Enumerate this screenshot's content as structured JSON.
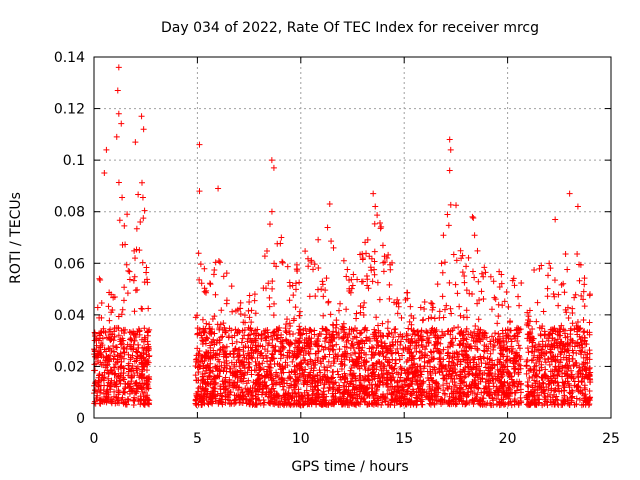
{
  "chart_data": {
    "type": "scatter",
    "title": "Day 034 of 2022, Rate Of TEC Index for receiver mrcg",
    "xlabel": "GPS time / hours",
    "ylabel": "ROTI / TECUs",
    "xlim": [
      0,
      25
    ],
    "ylim": [
      0,
      0.14
    ],
    "x_ticks": [
      "0",
      "5",
      "10",
      "15",
      "20",
      "25"
    ],
    "y_ticks": [
      "0",
      "0.02",
      "0.04",
      "0.06",
      "0.08",
      "0.1",
      "0.12",
      "0.14"
    ],
    "grid": true,
    "marker": "+",
    "marker_color": "#ff0000",
    "segments": [
      {
        "x": [
          0.0,
          2.7
        ],
        "base": 0.005,
        "typical_max": 0.035,
        "envelope": [
          [
            0.0,
            0.03
          ],
          [
            0.3,
            0.06
          ],
          [
            0.6,
            0.045
          ],
          [
            1.0,
            0.06
          ],
          [
            1.3,
            0.12
          ],
          [
            1.6,
            0.06
          ],
          [
            2.0,
            0.08
          ],
          [
            2.4,
            0.11
          ],
          [
            2.7,
            0.02
          ]
        ]
      },
      {
        "x": [
          4.9,
          20.7
        ],
        "base": 0.005,
        "typical_max": 0.035,
        "envelope": [
          [
            4.9,
            0.08
          ],
          [
            5.5,
            0.05
          ],
          [
            6.0,
            0.065
          ],
          [
            7.0,
            0.045
          ],
          [
            8.0,
            0.05
          ],
          [
            8.7,
            0.09
          ],
          [
            9.5,
            0.055
          ],
          [
            10.5,
            0.07
          ],
          [
            11.5,
            0.075
          ],
          [
            12.5,
            0.06
          ],
          [
            13.6,
            0.085
          ],
          [
            14.5,
            0.06
          ],
          [
            15.5,
            0.045
          ],
          [
            16.5,
            0.045
          ],
          [
            17.2,
            0.1
          ],
          [
            18.0,
            0.06
          ],
          [
            18.3,
            0.08
          ],
          [
            19.0,
            0.055
          ],
          [
            20.0,
            0.06
          ],
          [
            20.7,
            0.055
          ]
        ]
      },
      {
        "x": [
          20.9,
          24.0
        ],
        "base": 0.005,
        "typical_max": 0.035,
        "envelope": [
          [
            20.9,
            0.04
          ],
          [
            21.3,
            0.06
          ],
          [
            22.0,
            0.065
          ],
          [
            22.5,
            0.05
          ],
          [
            23.0,
            0.075
          ],
          [
            23.5,
            0.06
          ],
          [
            24.0,
            0.065
          ]
        ]
      }
    ],
    "notable_points": [
      {
        "x": 1.2,
        "y": 0.136
      },
      {
        "x": 1.15,
        "y": 0.127
      },
      {
        "x": 1.2,
        "y": 0.118
      },
      {
        "x": 1.1,
        "y": 0.109
      },
      {
        "x": 2.3,
        "y": 0.117
      },
      {
        "x": 2.4,
        "y": 0.112
      },
      {
        "x": 0.6,
        "y": 0.104
      },
      {
        "x": 2.0,
        "y": 0.107
      },
      {
        "x": 0.5,
        "y": 0.095
      },
      {
        "x": 5.1,
        "y": 0.106
      },
      {
        "x": 8.6,
        "y": 0.1
      },
      {
        "x": 8.7,
        "y": 0.097
      },
      {
        "x": 17.2,
        "y": 0.108
      },
      {
        "x": 17.25,
        "y": 0.104
      },
      {
        "x": 17.2,
        "y": 0.096
      },
      {
        "x": 13.5,
        "y": 0.087
      },
      {
        "x": 13.6,
        "y": 0.082
      },
      {
        "x": 11.4,
        "y": 0.083
      },
      {
        "x": 23.0,
        "y": 0.087
      },
      {
        "x": 23.4,
        "y": 0.082
      },
      {
        "x": 18.3,
        "y": 0.078
      },
      {
        "x": 22.3,
        "y": 0.077
      },
      {
        "x": 6.0,
        "y": 0.089
      },
      {
        "x": 5.1,
        "y": 0.088
      },
      {
        "x": 1.6,
        "y": 0.079
      }
    ]
  }
}
